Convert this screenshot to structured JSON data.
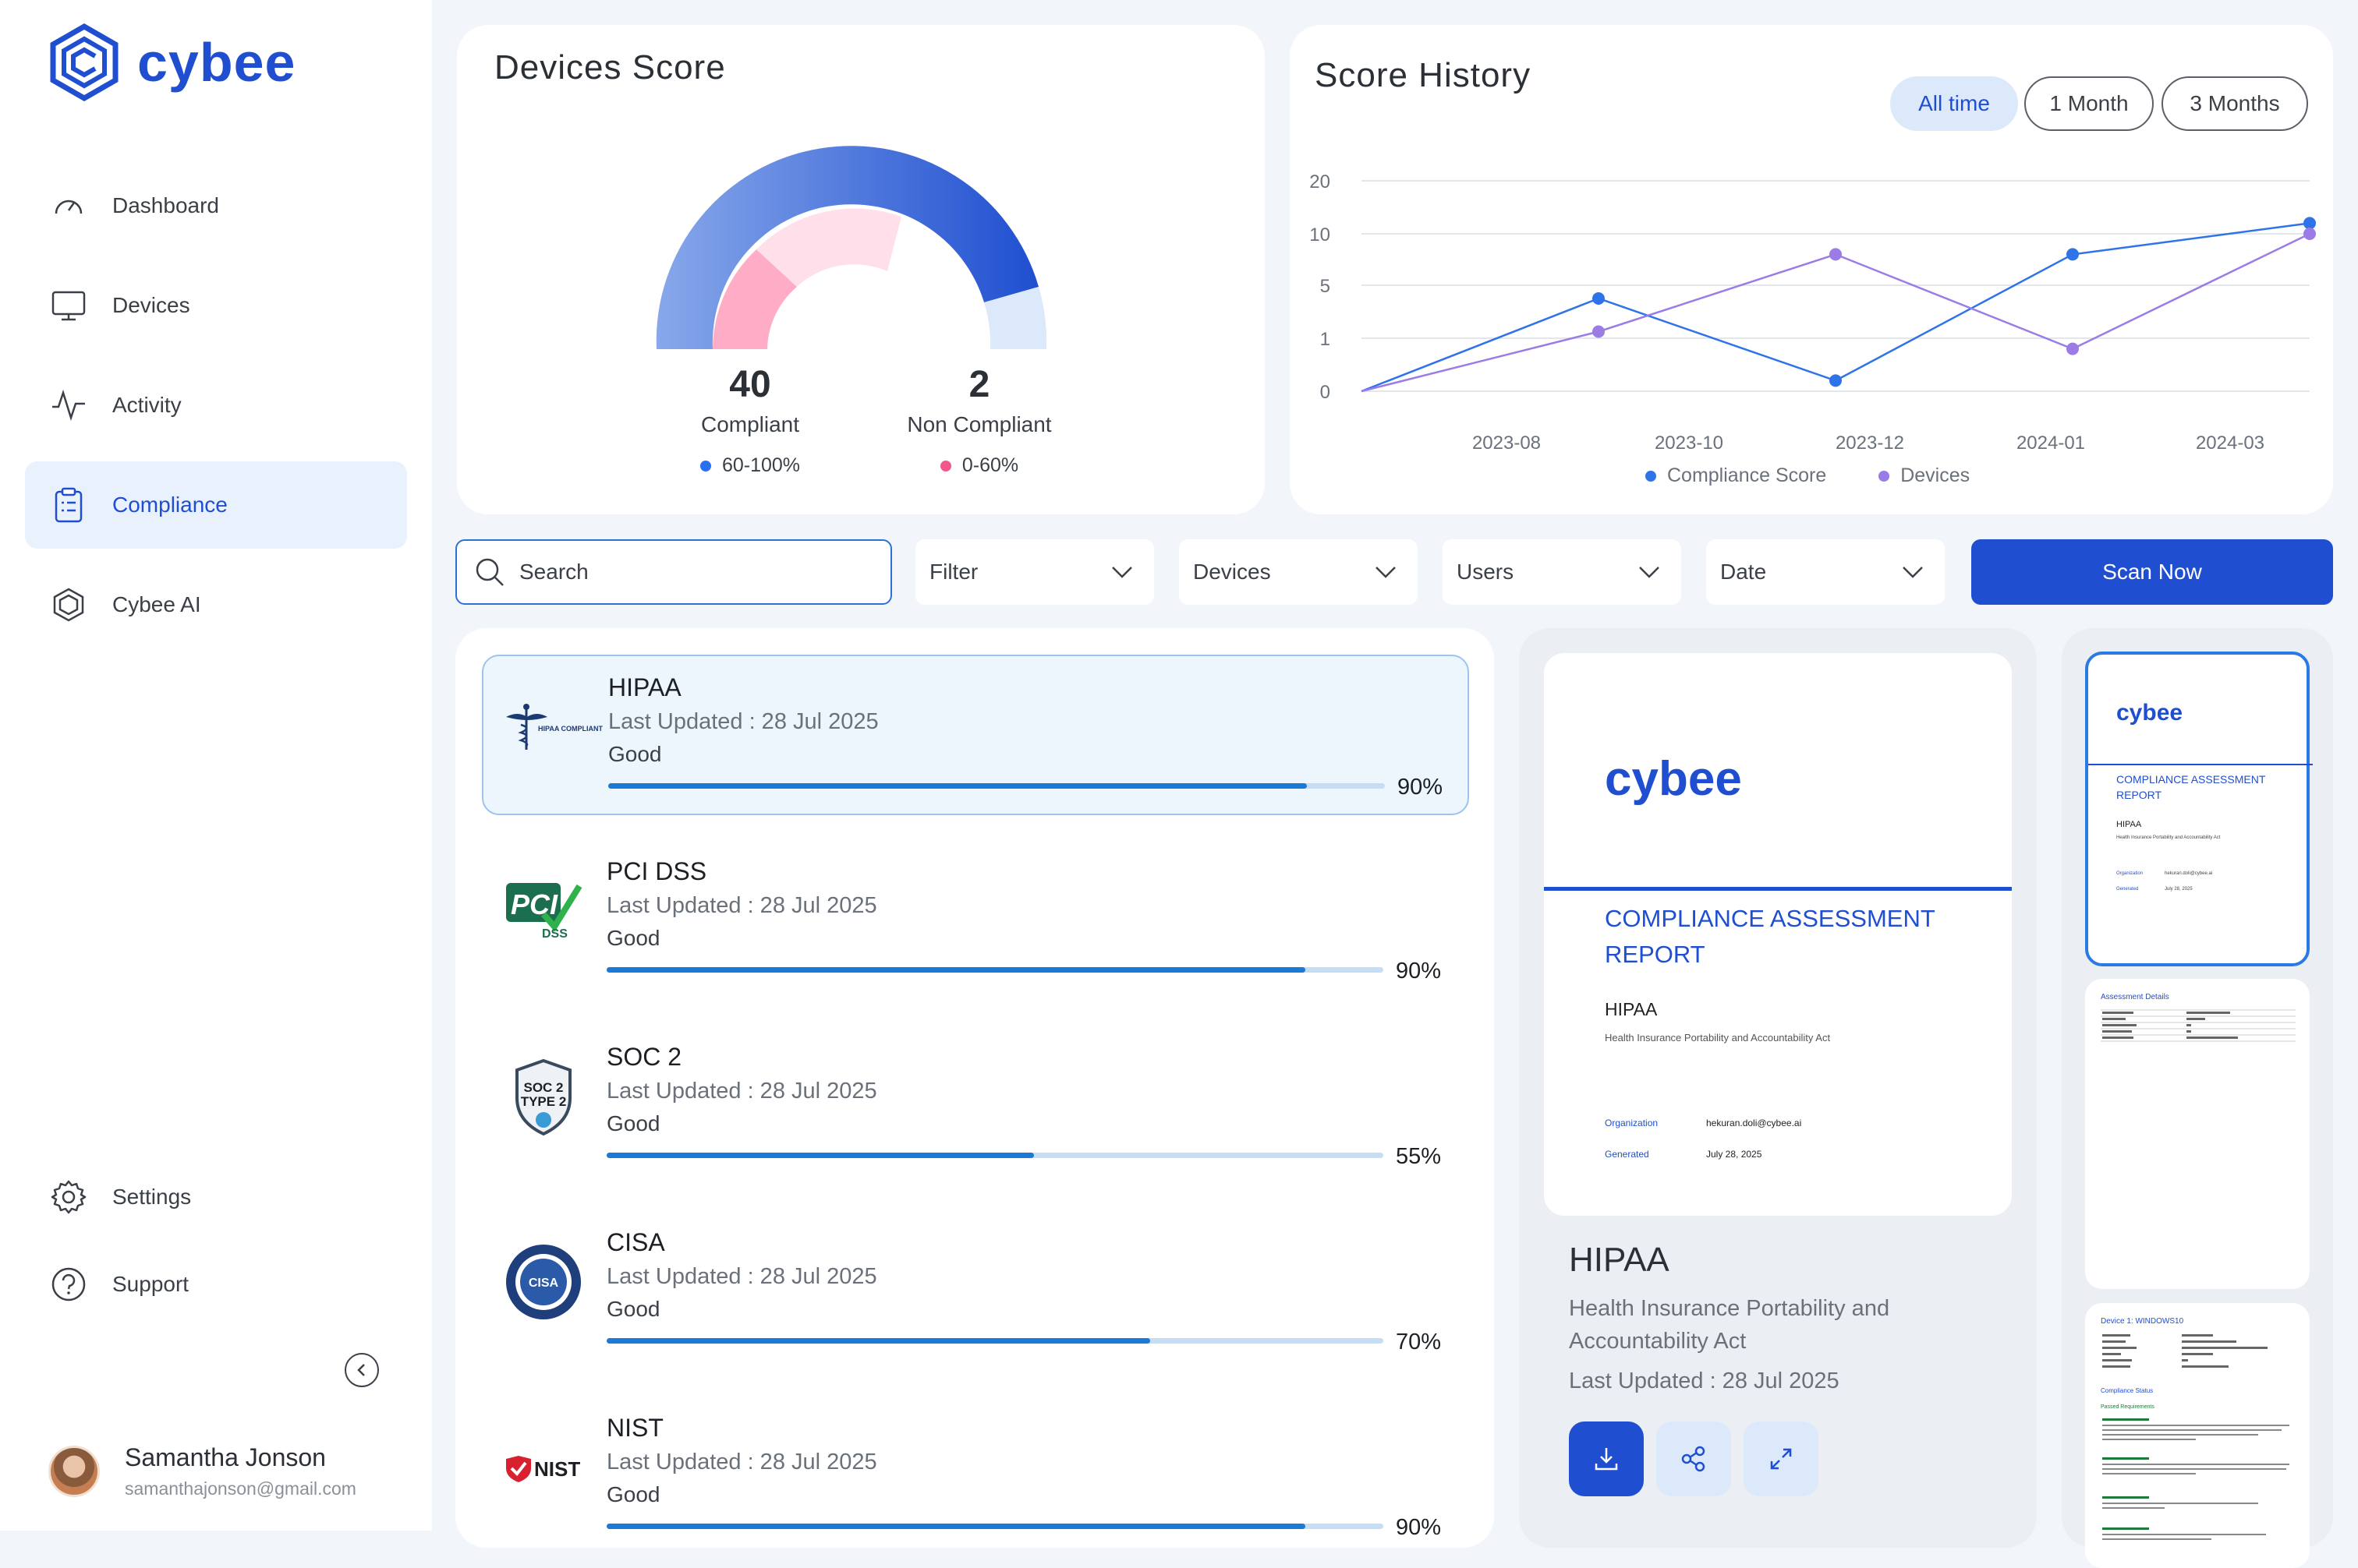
{
  "brand": {
    "name": "cybee"
  },
  "sidebar": {
    "items": [
      {
        "label": "Dashboard",
        "icon": "gauge-icon"
      },
      {
        "label": "Devices",
        "icon": "monitor-icon"
      },
      {
        "label": "Activity",
        "icon": "activity-icon"
      },
      {
        "label": "Compliance",
        "icon": "clipboard-icon",
        "active": true
      },
      {
        "label": "Cybee AI",
        "icon": "hexagon-icon"
      }
    ],
    "bottom": [
      {
        "label": "Settings",
        "icon": "gear-icon"
      },
      {
        "label": "Support",
        "icon": "help-icon"
      }
    ]
  },
  "user": {
    "name": "Samantha Jonson",
    "email": "samanthajonson@gmail.com"
  },
  "devices_score": {
    "title": "Devices Score",
    "compliant": {
      "value": "40",
      "label": "Compliant",
      "range": "60-100%",
      "color": "#2a6ff0"
    },
    "non_compliant": {
      "value": "2",
      "label": "Non Compliant",
      "range": "0-60%",
      "color": "#f2578c"
    }
  },
  "score_history": {
    "title": "Score History",
    "filters": [
      "All time",
      "1 Month",
      "3 Months"
    ],
    "active_filter": "All time"
  },
  "chart_data": {
    "type": "line",
    "y_ticks": [
      "20",
      "10",
      "5",
      "1",
      "0"
    ],
    "x_ticks": [
      "2023-08",
      "2023-10",
      "2023-12",
      "2024-01",
      "2024-03"
    ],
    "series": [
      {
        "name": "Compliance Score",
        "color": "#2f73e8",
        "values": [
          0,
          4,
          0.2,
          8,
          12
        ]
      },
      {
        "name": "Devices",
        "color": "#9b7be6",
        "values": [
          0,
          1.5,
          8,
          0.8,
          10
        ]
      }
    ]
  },
  "toolbar": {
    "search_placeholder": "Search",
    "filter": "Filter",
    "devices": "Devices",
    "users": "Users",
    "date": "Date",
    "scan": "Scan Now"
  },
  "frameworks": [
    {
      "name": "HIPAA",
      "updated": "Last Updated : 28 Jul 2025",
      "status": "Good",
      "percent": "90%",
      "fraction": 0.9,
      "logo": "hipaa-logo"
    },
    {
      "name": "PCI DSS",
      "updated": "Last Updated : 28 Jul 2025",
      "status": "Good",
      "percent": "90%",
      "fraction": 0.9,
      "logo": "pci-dss-logo"
    },
    {
      "name": "SOC 2",
      "updated": "Last Updated : 28 Jul 2025",
      "status": "Good",
      "percent": "55%",
      "fraction": 0.55,
      "logo": "soc2-logo"
    },
    {
      "name": "CISA",
      "updated": "Last Updated : 28 Jul 2025",
      "status": "Good",
      "percent": "70%",
      "fraction": 0.7,
      "logo": "cisa-logo"
    },
    {
      "name": "NIST",
      "updated": "Last Updated : 28 Jul 2025",
      "status": "Good",
      "percent": "90%",
      "fraction": 0.9,
      "logo": "nist-logo"
    }
  ],
  "logo_text": {
    "hipaa": "HIPAA COMPLIANT",
    "pci": "PCI",
    "dss": "DSS",
    "soc": "SOC 2",
    "type": "TYPE 2",
    "cisa": "CISA",
    "nist": "NIST"
  },
  "report": {
    "brand": "cybee",
    "heading": "COMPLIANCE ASSESSMENT REPORT",
    "framework": "HIPAA",
    "framework_full": "Health Insurance Portability and Accountability Act",
    "org_label": "Organization",
    "org_value": "hekuran.doli@cybee.ai",
    "gen_label": "Generated",
    "gen_value": "July 28, 2025",
    "title": "HIPAA",
    "description": "Health Insurance Portability and Accountability Act",
    "updated": "Last Updated : 28 Jul 2025",
    "actions": [
      "download-icon",
      "share-icon",
      "expand-icon"
    ]
  },
  "thumbs": {
    "p2_title": "Assessment Details",
    "p3_title": "Device 1: WINDOWS10",
    "p3_sub": "Compliance Status",
    "p3_sub2": "Passed Requirements"
  }
}
